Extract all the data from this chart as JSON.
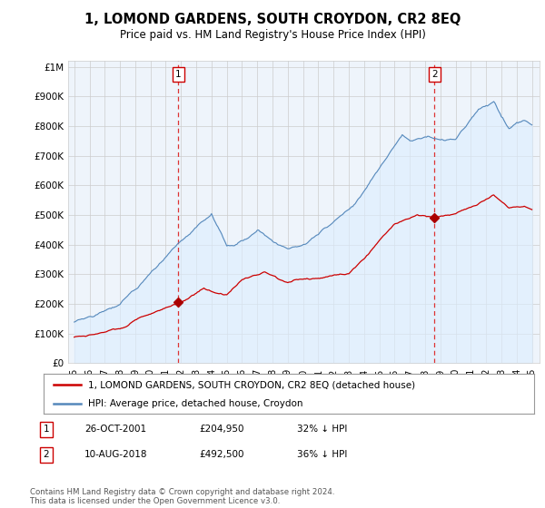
{
  "title": "1, LOMOND GARDENS, SOUTH CROYDON, CR2 8EQ",
  "subtitle": "Price paid vs. HM Land Registry's House Price Index (HPI)",
  "y_ticks": [
    0,
    100000,
    200000,
    300000,
    400000,
    500000,
    600000,
    700000,
    800000,
    900000,
    1000000
  ],
  "y_tick_labels": [
    "£0",
    "£100K",
    "£200K",
    "£300K",
    "£400K",
    "£500K",
    "£600K",
    "£700K",
    "£800K",
    "£900K",
    "£1M"
  ],
  "ylim": [
    0,
    1020000
  ],
  "sale1_date": 2001.82,
  "sale1_price": 204950,
  "sale1_label": "1",
  "sale2_date": 2018.61,
  "sale2_price": 492500,
  "sale2_label": "2",
  "hpi_line_color": "#5588bb",
  "hpi_fill_color": "#ddeeff",
  "price_line_color": "#cc0000",
  "vline_color": "#dd3333",
  "marker_color": "#aa0000",
  "legend_label1": "1, LOMOND GARDENS, SOUTH CROYDON, CR2 8EQ (detached house)",
  "legend_label2": "HPI: Average price, detached house, Croydon",
  "table_row1": [
    "1",
    "26-OCT-2001",
    "£204,950",
    "32% ↓ HPI"
  ],
  "table_row2": [
    "2",
    "10-AUG-2018",
    "£492,500",
    "36% ↓ HPI"
  ],
  "footnote": "Contains HM Land Registry data © Crown copyright and database right 2024.\nThis data is licensed under the Open Government Licence v3.0.",
  "background_color": "#ffffff",
  "chart_bg_color": "#eef4fb",
  "grid_color": "#cccccc"
}
